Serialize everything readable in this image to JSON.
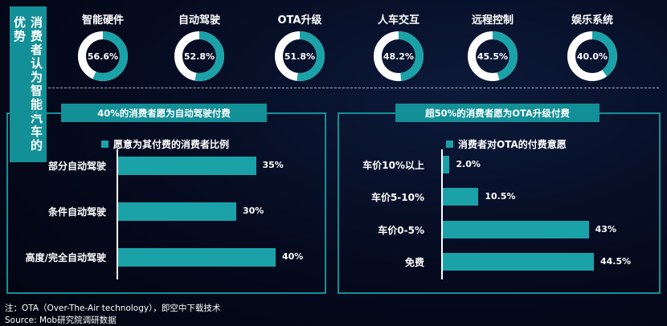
{
  "side_title": "消费者认为智能汽车的优势",
  "chart_data": [
    {
      "type": "pie",
      "subtype": "donut",
      "items": [
        {
          "name": "智能硬件",
          "value": 56.6,
          "label": "56.6%"
        },
        {
          "name": "自动驾驶",
          "value": 52.8,
          "label": "52.8%"
        },
        {
          "name": "OTA升级",
          "value": 51.8,
          "label": "51.8%"
        },
        {
          "name": "人车交互",
          "value": 48.2,
          "label": "48.2%"
        },
        {
          "name": "远程控制",
          "value": 45.5,
          "label": "45.5%"
        },
        {
          "name": "娱乐系统",
          "value": 40.0,
          "label": "40.0%"
        }
      ]
    },
    {
      "type": "bar",
      "orientation": "horizontal",
      "title": "40%的消费者愿为自动驾驶付费",
      "legend": "愿意为其付费的消费者比例",
      "categories": [
        "部分自动驾驶",
        "条件自动驾驶",
        "高度/完全自动驾驶"
      ],
      "values": [
        35,
        30,
        40
      ],
      "labels": [
        "35%",
        "30%",
        "40%"
      ],
      "xlim": [
        0,
        40
      ]
    },
    {
      "type": "bar",
      "orientation": "horizontal",
      "title": "超50%的消费者愿为OTA升级付费",
      "legend": "消费者对OTA的付费意愿",
      "categories": [
        "车价10%以上",
        "车价5-10%",
        "车价0-5%",
        "免费"
      ],
      "values": [
        2.0,
        10.5,
        43,
        44.5
      ],
      "labels": [
        "2.0%",
        "10.5%",
        "43%",
        "44.5%"
      ],
      "xlim": [
        0,
        44.5
      ]
    }
  ],
  "note": "注：OTA（Over-The-Air technology），即空中下载技术",
  "source": "Source:  Mob研究院调研数据",
  "colors": {
    "accent": "#1aa2a8",
    "ring_bg": "#ffffff",
    "panel": "#138f97"
  }
}
